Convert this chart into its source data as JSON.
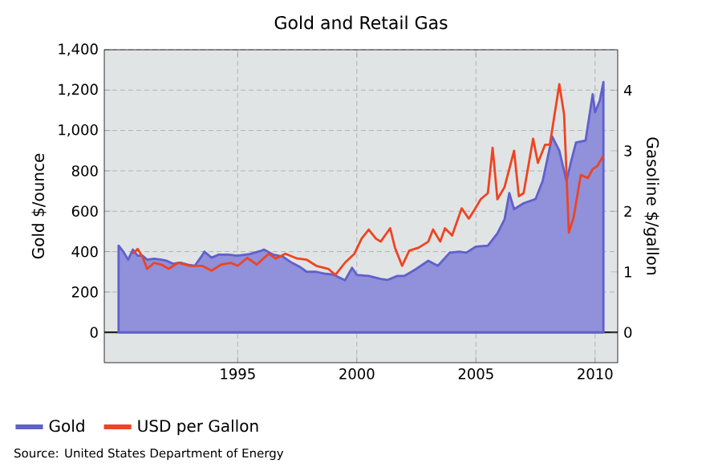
{
  "chart_data": {
    "type": "area",
    "title": "Gold and Retail Gas",
    "ylabel": "Gold $/ounce",
    "y2label": "Gasoline $/gallon",
    "annotations": [
      "Source: United States Department of Energy"
    ],
    "xlim": [
      1989.4,
      2010.95
    ],
    "xticks": [
      1995,
      2000,
      2005,
      2010
    ],
    "ylim": [
      -150,
      1400
    ],
    "yticks": [
      0,
      200,
      400,
      600,
      800,
      {
        "value": 1000,
        "label": "1,000"
      },
      {
        "value": 1200,
        "label": "1,200"
      },
      {
        "value": 1400,
        "label": "1,400"
      }
    ],
    "y2lim": [
      -0.5,
      4.67
    ],
    "y2ticks": [
      0,
      1,
      2,
      3,
      4
    ],
    "grid": true,
    "legend": "bottom",
    "marker": "none",
    "ref_lines": [
      {
        "axis": "y",
        "value": 0,
        "color": "#222222"
      }
    ],
    "series": [
      {
        "name": "Gold",
        "color": "#6060cc",
        "x": [
          1990.0,
          1990.2,
          1990.4,
          1990.6,
          1990.8,
          1991.0,
          1991.2,
          1991.5,
          1991.8,
          1992.0,
          1992.3,
          1992.6,
          1992.9,
          1993.2,
          1993.5,
          1993.6,
          1993.9,
          1994.2,
          1994.6,
          1995.0,
          1995.5,
          1996.0,
          1996.1,
          1996.5,
          1996.9,
          1997.2,
          1997.6,
          1997.9,
          1998.3,
          1998.7,
          1999.0,
          1999.5,
          1999.8,
          2000.0,
          2000.5,
          2001.0,
          2001.3,
          2001.7,
          2002.0,
          2002.5,
          2003.0,
          2003.4,
          2003.9,
          2004.3,
          2004.6,
          2005.0,
          2005.5,
          2005.9,
          2006.2,
          2006.4,
          2006.6,
          2007.0,
          2007.5,
          2007.8,
          2008.0,
          2008.2,
          2008.5,
          2008.8,
          2009.0,
          2009.2,
          2009.6,
          2009.9,
          2010.0,
          2010.2,
          2010.35
        ],
        "values": [
          430,
          400,
          360,
          410,
          380,
          380,
          360,
          365,
          360,
          355,
          340,
          345,
          335,
          330,
          380,
          400,
          370,
          385,
          385,
          380,
          388,
          405,
          410,
          385,
          375,
          350,
          325,
          300,
          300,
          290,
          287,
          258,
          320,
          285,
          280,
          265,
          260,
          280,
          280,
          315,
          355,
          330,
          395,
          400,
          395,
          425,
          430,
          490,
          560,
          690,
          610,
          640,
          660,
          750,
          860,
          970,
          900,
          750,
          850,
          940,
          950,
          1180,
          1090,
          1150,
          1240
        ]
      },
      {
        "name": "USD per Gallon",
        "type": "line",
        "axis": "y2",
        "color": "#ee4422",
        "x": [
          1990.6,
          1990.8,
          1991.0,
          1991.2,
          1991.5,
          1991.8,
          1992.1,
          1992.5,
          1993.0,
          1993.5,
          1993.9,
          1994.3,
          1994.7,
          1995.0,
          1995.4,
          1995.8,
          1996.3,
          1996.6,
          1997.0,
          1997.5,
          1997.9,
          1998.3,
          1998.8,
          1999.1,
          1999.5,
          1999.9,
          2000.2,
          2000.5,
          2000.8,
          2001.0,
          2001.4,
          2001.6,
          2001.9,
          2002.2,
          2002.6,
          2003.0,
          2003.2,
          2003.5,
          2003.7,
          2004.0,
          2004.4,
          2004.7,
          2004.9,
          2005.2,
          2005.5,
          2005.7,
          2005.9,
          2006.2,
          2006.6,
          2006.8,
          2007.0,
          2007.4,
          2007.6,
          2007.9,
          2008.1,
          2008.5,
          2008.7,
          2008.9,
          2009.1,
          2009.4,
          2009.7,
          2009.9,
          2010.1,
          2010.35
        ],
        "values": [
          1.3,
          1.38,
          1.25,
          1.05,
          1.15,
          1.12,
          1.05,
          1.15,
          1.1,
          1.1,
          1.02,
          1.12,
          1.15,
          1.1,
          1.23,
          1.12,
          1.3,
          1.22,
          1.3,
          1.22,
          1.2,
          1.1,
          1.05,
          0.95,
          1.15,
          1.3,
          1.55,
          1.7,
          1.55,
          1.5,
          1.72,
          1.4,
          1.1,
          1.35,
          1.4,
          1.5,
          1.7,
          1.5,
          1.72,
          1.6,
          2.05,
          1.88,
          2.0,
          2.2,
          2.3,
          3.05,
          2.2,
          2.4,
          3.0,
          2.25,
          2.3,
          3.2,
          2.8,
          3.1,
          3.1,
          4.1,
          3.6,
          1.65,
          1.9,
          2.6,
          2.55,
          2.7,
          2.75,
          2.92
        ]
      }
    ]
  }
}
